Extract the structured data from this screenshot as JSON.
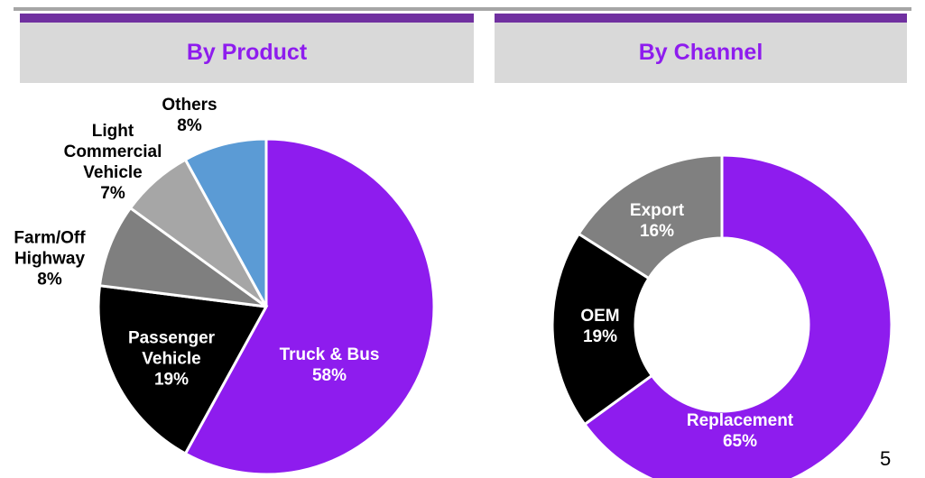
{
  "chart_data": [
    {
      "type": "pie",
      "title": "By Product",
      "categories": [
        "Truck & Bus",
        "Passenger Vehicle",
        "Farm/Off Highway",
        "Light Commercial Vehicle",
        "Others"
      ],
      "values": [
        58,
        19,
        8,
        7,
        8
      ],
      "value_labels": [
        "58%",
        "19%",
        "8%",
        "7%",
        "8%"
      ],
      "colors": [
        "#8e1cee",
        "#000000",
        "#7f7f7f",
        "#a6a6a6",
        "#5b9bd5"
      ]
    },
    {
      "type": "donut",
      "title": "By Channel",
      "categories": [
        "Replacement",
        "OEM",
        "Export"
      ],
      "values": [
        65,
        19,
        16
      ],
      "value_labels": [
        "65%",
        "19%",
        "16%"
      ],
      "colors": [
        "#8e1cee",
        "#000000",
        "#808080"
      ]
    }
  ],
  "page_number": 5
}
